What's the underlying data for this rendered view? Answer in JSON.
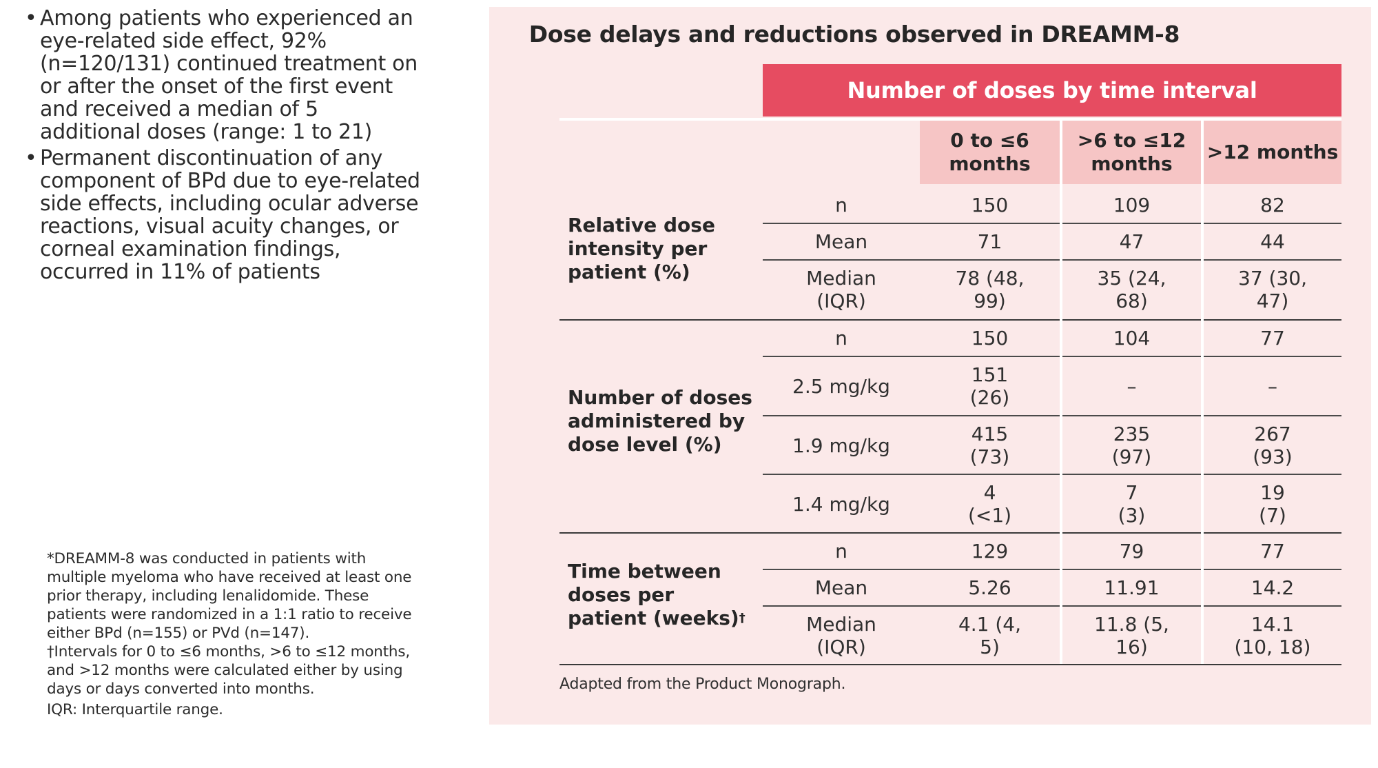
{
  "bullets": [
    "Among patients who experienced an eye-related side effect, 92% (n=120/131) continued treatment on or after the onset of the first event and received a median of 5 additional doses (range: 1 to 21)",
    "Permanent discontinuation of any component of BPd due to eye-related side effects, including ocular adverse reactions, visual acuity changes, or corneal examination findings, occurred in 11% of patients"
  ],
  "bullet_symbol": "•",
  "footnotes": {
    "line1": "*DREAMM-8 was conducted in patients with multiple myeloma who have received at least one prior therapy, including lenalidomide. These patients were randomized in a 1:1 ratio to receive either BPd (n=155) or PVd (n=147).",
    "line2": "†Intervals for 0 to ≤6 months, >6 to ≤12 months, and >12 months were calculated either by using days or days converted into months.",
    "line3": "IQR: Interquartile range."
  },
  "table": {
    "title": "Dose delays and reductions observed in DREAMM-8",
    "header": "Number of doses by time interval",
    "columns": [
      "0 to ≤6 months",
      ">6 to ≤12 months",
      ">12 months"
    ],
    "groups": [
      {
        "label": "Relative dose intensity per patient (%)",
        "rows": [
          {
            "label": "n",
            "values": [
              "150",
              "109",
              "82"
            ]
          },
          {
            "label": "Mean",
            "values": [
              "71",
              "47",
              "44"
            ]
          },
          {
            "label": "Median (IQR)",
            "values": [
              "78 (48, 99)",
              "35 (24, 68)",
              "37 (30, 47)"
            ]
          }
        ]
      },
      {
        "label": "Number of doses administered by dose level (%)",
        "rows": [
          {
            "label": "n",
            "values": [
              "150",
              "104",
              "77"
            ]
          },
          {
            "label": "2.5 mg/kg",
            "values": [
              "151 (26)",
              "–",
              "–"
            ]
          },
          {
            "label": "1.9 mg/kg",
            "values": [
              "415 (73)",
              "235 (97)",
              "267 (93)"
            ]
          },
          {
            "label": "1.4 mg/kg",
            "values": [
              "4 (<1)",
              "7 (3)",
              "19 (7)"
            ]
          }
        ]
      },
      {
        "label": "Time between doses per patient (weeks)",
        "label_sup": "†",
        "rows": [
          {
            "label": "n",
            "values": [
              "129",
              "79",
              "77"
            ]
          },
          {
            "label": "Mean",
            "values": [
              "5.26",
              "11.91",
              "14.2"
            ]
          },
          {
            "label": "Median (IQR)",
            "values": [
              "4.1 (4, 5)",
              "11.8 (5, 16)",
              "14.1 (10, 18)"
            ]
          }
        ]
      }
    ],
    "source": "Adapted from the Product Monograph."
  },
  "colors": {
    "panel_bg": "#fbe9e9",
    "header_bar": "#e64c61",
    "column_header": "#f6c5c5"
  }
}
